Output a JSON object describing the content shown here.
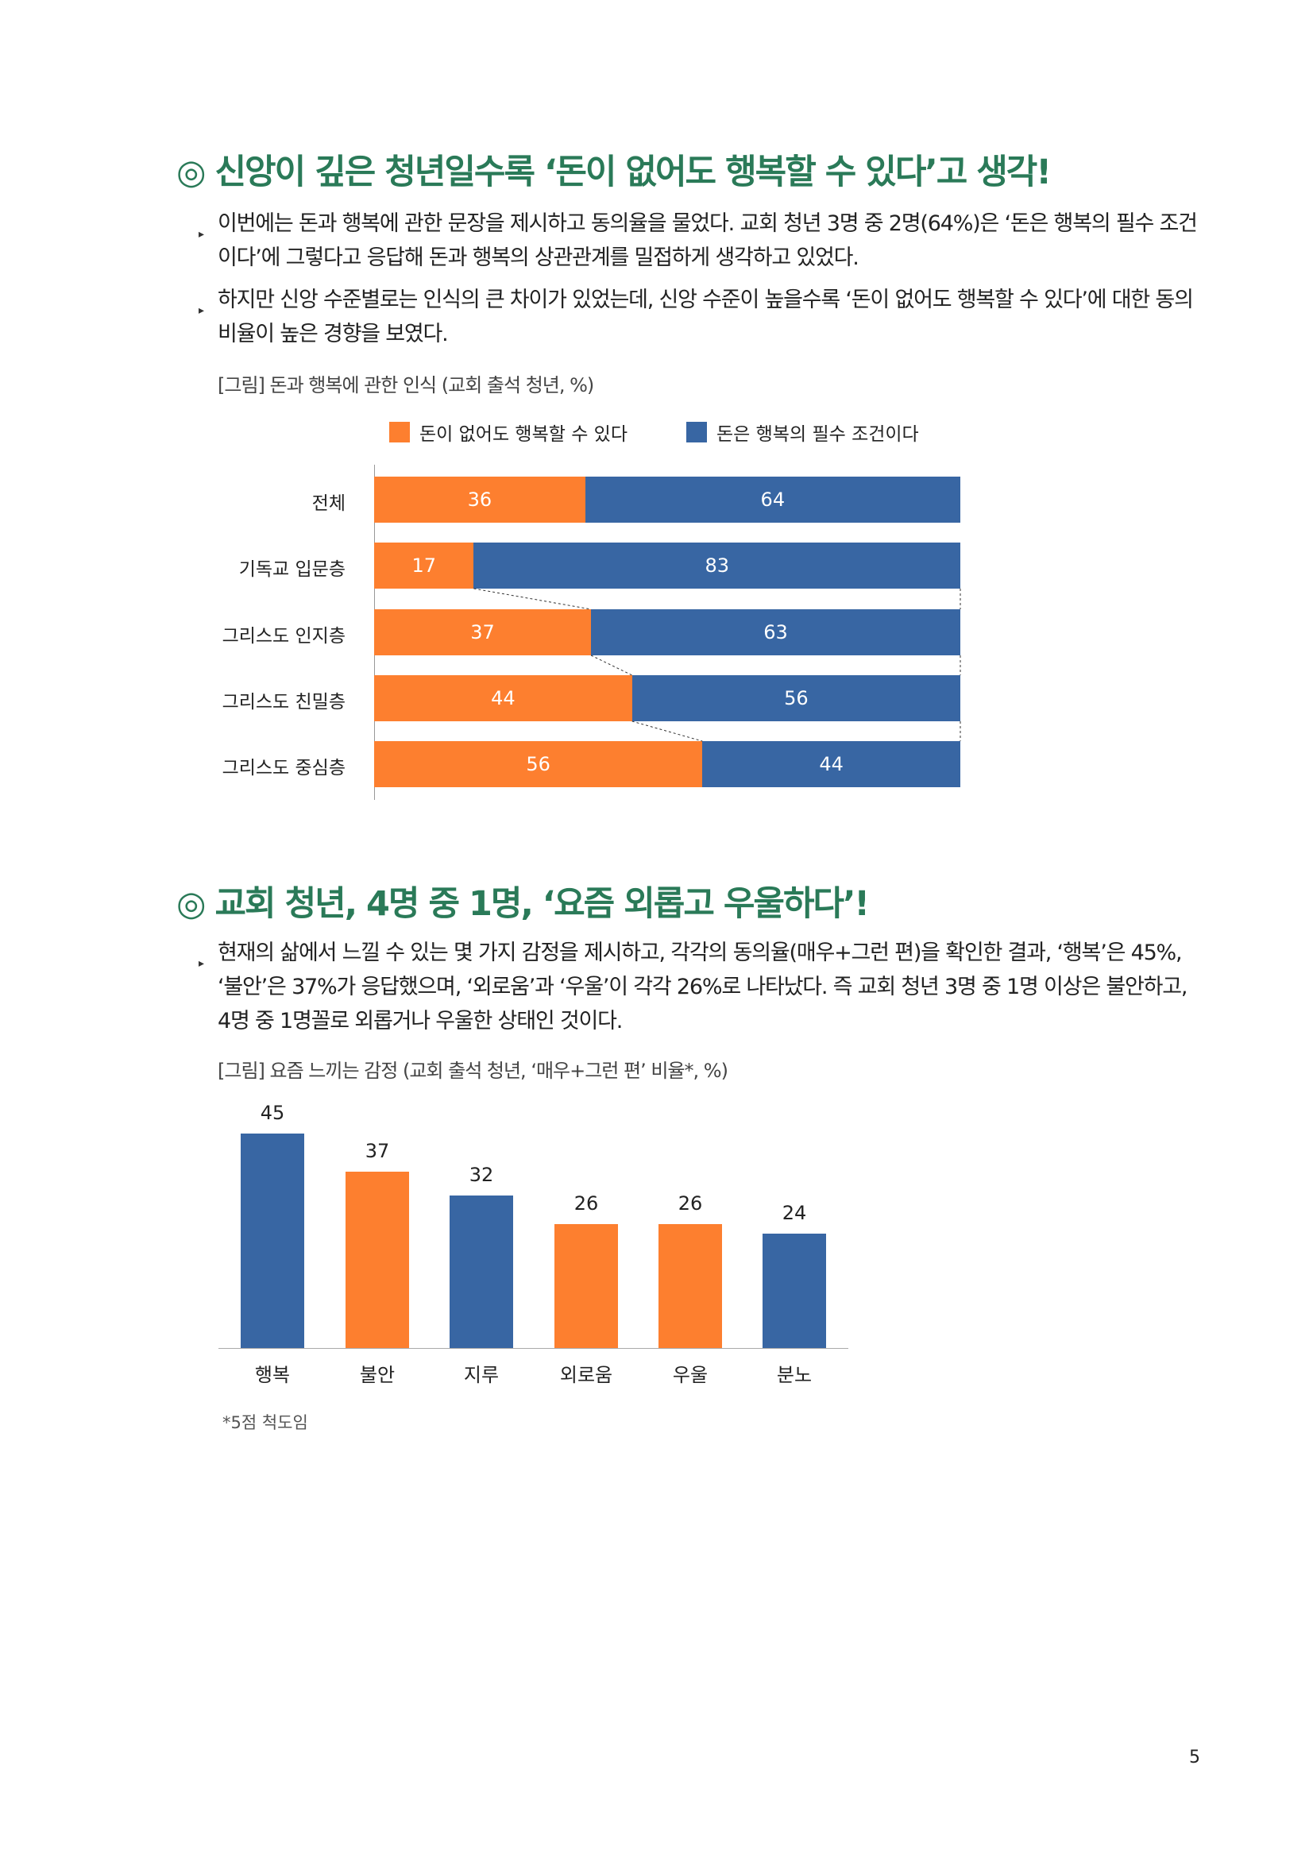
{
  "section1": {
    "title": "◎ 신앙이 깊은 청년일수록 ‘돈이 없어도 행복할 수 있다’고 생각!",
    "bullets": [
      "이번에는 돈과 행복에 관한 문장을 제시하고 동의율을 물었다. 교회 청년 3명 중 2명(64%)은 ‘돈은 행복의 필수 조건이다’에 그렇다고 응답해 돈과 행복의 상관관계를 밀접하게 생각하고 있었다.",
      "하지만 신앙 수준별로는 인식의 큰 차이가 있었는데, 신앙 수준이 높을수록 ‘돈이 없어도 행복할 수 있다’에 대한 동의 비율이 높은 경향을 보였다."
    ],
    "caption": "[그림] 돈과 행복에 관한 인식 (교회 출석 청년, %)"
  },
  "section2": {
    "title": "◎ 교회 청년, 4명 중 1명, ‘요즘 외롭고 우울하다’!",
    "bullets": [
      "현재의 삶에서 느낄 수 있는 몇 가지 감정을 제시하고, 각각의 동의율(매우+그런 편)을 확인한 결과, ‘행복’은 45%, ‘불안’은 37%가 응답했으며, ‘외로움’과 ‘우울’이 각각 26%로 나타났다. 즉 교회 청년 3명 중 1명 이상은 불안하고, 4명 중 1명꼴로 외롭거나 우울한 상태인 것이다."
    ],
    "caption": "[그림] 요즘 느끼는 감정 (교회 출석 청년, ‘매우+그런 편’ 비율*, %)",
    "footnote": "*5점 척도임"
  },
  "page_number": "5",
  "colors": {
    "orange": "#fd7f2f",
    "blue": "#3866a3",
    "green": "#2a7a58"
  },
  "chart_data": [
    {
      "type": "bar",
      "orientation": "horizontal-stacked-100",
      "title": "돈과 행복에 관한 인식 (교회 출석 청년, %)",
      "legend_position": "top",
      "categories": [
        "전체",
        "기독교 입문층",
        "그리스도 인지층",
        "그리스도 친밀층",
        "그리스도 중심층"
      ],
      "series": [
        {
          "name": "돈이 없어도 행복할 수 있다",
          "color": "#fd7f2f",
          "values": [
            36,
            17,
            37,
            44,
            56
          ]
        },
        {
          "name": "돈은 행복의 필수 조건이다",
          "color": "#3866a3",
          "values": [
            64,
            83,
            63,
            56,
            44
          ]
        }
      ],
      "xlim": [
        0,
        100
      ]
    },
    {
      "type": "bar",
      "title": "요즘 느끼는 감정 (교회 출석 청년, ‘매우+그런 편’ 비율*, %)",
      "categories": [
        "행복",
        "불안",
        "지루",
        "외로움",
        "우울",
        "분노"
      ],
      "values": [
        45,
        37,
        32,
        26,
        26,
        24
      ],
      "colors": [
        "#3866a3",
        "#fd7f2f",
        "#3866a3",
        "#fd7f2f",
        "#fd7f2f",
        "#3866a3"
      ],
      "ylim": [
        0,
        50
      ]
    }
  ]
}
